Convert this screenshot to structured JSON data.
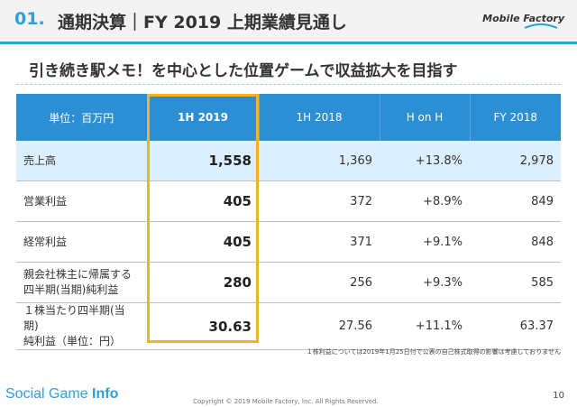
{
  "header": {
    "number": "01.",
    "title": "通期決算｜FY 2019 上期業績見通し",
    "logo": "Mobile Factory"
  },
  "subtitle": "引き続き駅メモ！を中心とした位置ゲームで収益拡大を目指す",
  "table": {
    "columns": [
      "単位：百万円",
      "1H 2019",
      "1H 2018",
      "H on H",
      "FY 2018"
    ],
    "rows": [
      {
        "label": "売上高",
        "label2": "",
        "values": [
          "1,558",
          "1,369",
          "+13.8%",
          "2,978"
        ]
      },
      {
        "label": "営業利益",
        "label2": "",
        "values": [
          "405",
          "372",
          "+8.9%",
          "849"
        ]
      },
      {
        "label": "経常利益",
        "label2": "",
        "values": [
          "405",
          "371",
          "+9.1%",
          "848"
        ]
      },
      {
        "label": "親会社株主に帰属する",
        "label2": "四半期(当期)純利益",
        "values": [
          "280",
          "256",
          "+9.3%",
          "585"
        ]
      },
      {
        "label": "１株当たり四半期(当期)",
        "label2": "純利益（単位：円）",
        "values": [
          "30.63",
          "27.56",
          "+11.1%",
          "63.37"
        ]
      }
    ]
  },
  "footnote": "１株利益については2019年1月25日付で公表の自己株式取得の影響は考慮しておりません",
  "footer": {
    "brand_a": "Social Game",
    "brand_b": "Info",
    "copyright": "Copyright © 2019 Mobile Factory, Inc. All Rights Reserved.",
    "page": "10"
  },
  "colors": {
    "accent": "#2f9fd8",
    "header_cell": "#2d8fd3",
    "highlight_border": "#f0b429",
    "row_highlight": "#dcefff"
  }
}
